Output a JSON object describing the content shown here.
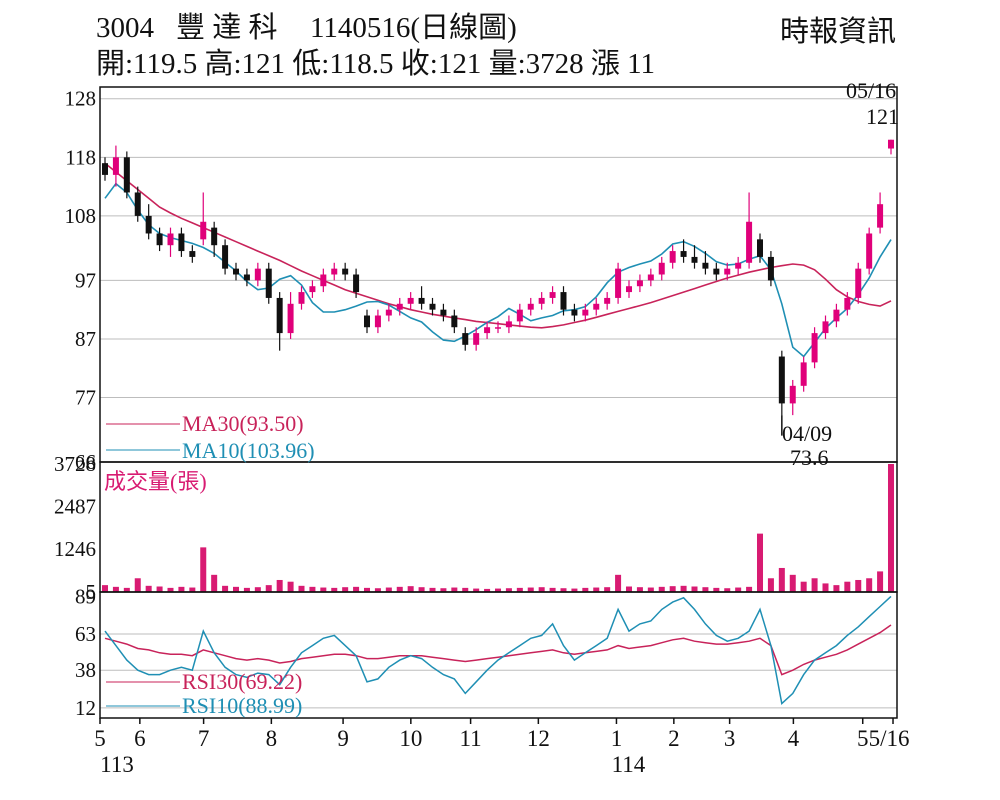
{
  "header": {
    "code": "3004",
    "name": "豐 達 科",
    "date_label": "1140516(日線圖)",
    "source": "時報資訊",
    "ohlc_line": "開:119.5 高:121 低:118.5 收:121 量:3728 漲 11"
  },
  "colors": {
    "up": "#e0007a",
    "down": "#111111",
    "ma30": "#c8235a",
    "ma10": "#1f8fb4",
    "rsi30": "#c8235a",
    "rsi10": "#1f8fb4",
    "volume": "#d81b72",
    "grid": "#bdbdbd",
    "frame": "#111111"
  },
  "chart_data": [
    {
      "type": "candlestick",
      "panel": "price",
      "y_ticks": [
        "128",
        "118",
        "108",
        "97",
        "87",
        "77",
        "66"
      ],
      "y_tick_values": [
        128,
        118,
        108,
        97,
        87,
        77,
        66
      ],
      "ylim": [
        66,
        130
      ],
      "grid": true,
      "series": [
        {
          "name": "MA30",
          "label": "MA30(93.50)",
          "last": 93.5,
          "values": [
            117,
            115.5,
            114,
            112.5,
            111,
            109.5,
            108.5,
            107.6,
            106.8,
            106,
            105.2,
            104.4,
            103.6,
            102.8,
            102,
            101.2,
            100.4,
            99.5,
            98.6,
            97.8,
            97,
            96.2,
            95.4,
            94.8,
            94.2,
            93.6,
            93,
            92.5,
            92,
            91.6,
            91.2,
            90.9,
            90.6,
            90.3,
            90,
            89.8,
            89.6,
            89.4,
            89.2,
            89,
            88.9,
            89.1,
            89.4,
            89.8,
            90.2,
            90.7,
            91.2,
            91.7,
            92.2,
            92.7,
            93.2,
            93.8,
            94.4,
            95,
            95.6,
            96.2,
            96.8,
            97.4,
            97.9,
            98.4,
            98.8,
            99.2,
            99.5,
            99.8,
            99.6,
            98.8,
            97.2,
            95.4,
            94.2,
            93.4,
            92.9,
            92.6,
            93.5
          ]
        },
        {
          "name": "MA10",
          "label": "MA10(103.96)",
          "last": 103.96,
          "values": [
            111,
            113.5,
            112,
            109,
            106.5,
            105,
            104.3,
            103.8,
            103.3,
            102.6,
            101.6,
            100.1,
            98.6,
            96.8,
            95.4,
            95.7,
            97.2,
            97.8,
            96.2,
            93.2,
            91.6,
            91.6,
            92,
            92.6,
            93.3,
            93.4,
            92.8,
            91.7,
            90.6,
            89.9,
            88.2,
            86.8,
            86.6,
            87.5,
            88.6,
            89.8,
            90.8,
            92.2,
            91.2,
            90.1,
            90.6,
            91,
            91.8,
            92,
            92.5,
            94.2,
            96.6,
            98.4,
            99.2,
            99.8,
            100.3,
            101.5,
            103.2,
            103.6,
            102.8,
            101.6,
            100.2,
            99.6,
            99.8,
            100.6,
            101.2,
            98.8,
            93,
            85.6,
            84,
            86.4,
            88.8,
            90.6,
            92.2,
            94.6,
            97.4,
            101,
            103.96
          ]
        }
      ],
      "annotations": [
        {
          "text": "05/16",
          "value": 121
        },
        {
          "text": "121",
          "value": 121
        },
        {
          "text": "04/09",
          "value": 73.6
        },
        {
          "text": "73.6",
          "value": 73.6
        }
      ],
      "candles": [
        {
          "o": 117,
          "h": 118,
          "l": 114,
          "c": 115
        },
        {
          "o": 115,
          "h": 120,
          "l": 113,
          "c": 118
        },
        {
          "o": 118,
          "h": 119,
          "l": 111,
          "c": 112
        },
        {
          "o": 112,
          "h": 113,
          "l": 107,
          "c": 108
        },
        {
          "o": 108,
          "h": 110,
          "l": 104,
          "c": 105
        },
        {
          "o": 105,
          "h": 106,
          "l": 102,
          "c": 103
        },
        {
          "o": 103,
          "h": 106,
          "l": 101,
          "c": 105
        },
        {
          "o": 105,
          "h": 106,
          "l": 101,
          "c": 102
        },
        {
          "o": 102,
          "h": 103,
          "l": 100,
          "c": 101
        },
        {
          "o": 104,
          "h": 112,
          "l": 103,
          "c": 107
        },
        {
          "o": 106,
          "h": 107,
          "l": 101,
          "c": 103
        },
        {
          "o": 103,
          "h": 104,
          "l": 98,
          "c": 99
        },
        {
          "o": 99,
          "h": 100,
          "l": 97,
          "c": 98
        },
        {
          "o": 98,
          "h": 99,
          "l": 96,
          "c": 97
        },
        {
          "o": 97,
          "h": 100,
          "l": 96,
          "c": 99
        },
        {
          "o": 99,
          "h": 100,
          "l": 93,
          "c": 94
        },
        {
          "o": 94,
          "h": 95,
          "l": 85,
          "c": 88
        },
        {
          "o": 88,
          "h": 95,
          "l": 87,
          "c": 93
        },
        {
          "o": 93,
          "h": 96,
          "l": 92,
          "c": 95
        },
        {
          "o": 95,
          "h": 97,
          "l": 94,
          "c": 96
        },
        {
          "o": 96,
          "h": 99,
          "l": 95,
          "c": 98
        },
        {
          "o": 98,
          "h": 100,
          "l": 97,
          "c": 99
        },
        {
          "o": 99,
          "h": 100,
          "l": 97,
          "c": 98
        },
        {
          "o": 98,
          "h": 99,
          "l": 94,
          "c": 95
        },
        {
          "o": 91,
          "h": 92,
          "l": 88,
          "c": 89
        },
        {
          "o": 89,
          "h": 92,
          "l": 88,
          "c": 91
        },
        {
          "o": 91,
          "h": 93,
          "l": 90,
          "c": 92
        },
        {
          "o": 92,
          "h": 94,
          "l": 91,
          "c": 93
        },
        {
          "o": 93,
          "h": 95,
          "l": 92,
          "c": 94
        },
        {
          "o": 94,
          "h": 96,
          "l": 92,
          "c": 93
        },
        {
          "o": 93,
          "h": 94,
          "l": 91,
          "c": 92
        },
        {
          "o": 92,
          "h": 93,
          "l": 90,
          "c": 91
        },
        {
          "o": 91,
          "h": 92,
          "l": 88,
          "c": 89
        },
        {
          "o": 88,
          "h": 89,
          "l": 85,
          "c": 86
        },
        {
          "o": 86,
          "h": 89,
          "l": 85,
          "c": 88
        },
        {
          "o": 88,
          "h": 90,
          "l": 87,
          "c": 89
        },
        {
          "o": 89,
          "h": 90,
          "l": 88,
          "c": 89
        },
        {
          "o": 89,
          "h": 91,
          "l": 88,
          "c": 90
        },
        {
          "o": 90,
          "h": 93,
          "l": 89,
          "c": 92
        },
        {
          "o": 92,
          "h": 94,
          "l": 91,
          "c": 93
        },
        {
          "o": 93,
          "h": 95,
          "l": 92,
          "c": 94
        },
        {
          "o": 94,
          "h": 96,
          "l": 93,
          "c": 95
        },
        {
          "o": 95,
          "h": 96,
          "l": 91,
          "c": 92
        },
        {
          "o": 92,
          "h": 93,
          "l": 90,
          "c": 91
        },
        {
          "o": 91,
          "h": 93,
          "l": 90,
          "c": 92
        },
        {
          "o": 92,
          "h": 94,
          "l": 91,
          "c": 93
        },
        {
          "o": 93,
          "h": 95,
          "l": 92,
          "c": 94
        },
        {
          "o": 94,
          "h": 100,
          "l": 93,
          "c": 99
        },
        {
          "o": 95,
          "h": 97,
          "l": 94,
          "c": 96
        },
        {
          "o": 96,
          "h": 98,
          "l": 95,
          "c": 97
        },
        {
          "o": 97,
          "h": 99,
          "l": 96,
          "c": 98
        },
        {
          "o": 98,
          "h": 101,
          "l": 97,
          "c": 100
        },
        {
          "o": 100,
          "h": 103,
          "l": 99,
          "c": 102
        },
        {
          "o": 102,
          "h": 104,
          "l": 100,
          "c": 101
        },
        {
          "o": 101,
          "h": 103,
          "l": 99,
          "c": 100
        },
        {
          "o": 100,
          "h": 102,
          "l": 98,
          "c": 99
        },
        {
          "o": 99,
          "h": 100,
          "l": 97,
          "c": 98
        },
        {
          "o": 98,
          "h": 100,
          "l": 97,
          "c": 99
        },
        {
          "o": 99,
          "h": 101,
          "l": 98,
          "c": 100
        },
        {
          "o": 100,
          "h": 112,
          "l": 99,
          "c": 107
        },
        {
          "o": 104,
          "h": 105,
          "l": 100,
          "c": 101
        },
        {
          "o": 101,
          "h": 102,
          "l": 96,
          "c": 97
        },
        {
          "o": 84,
          "h": 85,
          "l": 74,
          "c": 76
        },
        {
          "o": 76,
          "h": 80,
          "l": 74,
          "c": 79
        },
        {
          "o": 79,
          "h": 84,
          "l": 78,
          "c": 83
        },
        {
          "o": 83,
          "h": 89,
          "l": 82,
          "c": 88
        },
        {
          "o": 88,
          "h": 91,
          "l": 87,
          "c": 90
        },
        {
          "o": 90,
          "h": 93,
          "l": 89,
          "c": 92
        },
        {
          "o": 92,
          "h": 95,
          "l": 91,
          "c": 94
        },
        {
          "o": 94,
          "h": 100,
          "l": 93,
          "c": 99
        },
        {
          "o": 99,
          "h": 106,
          "l": 98,
          "c": 105
        },
        {
          "o": 106,
          "h": 112,
          "l": 105,
          "c": 110
        },
        {
          "o": 119.5,
          "h": 121,
          "l": 118.5,
          "c": 121
        }
      ]
    },
    {
      "type": "bar",
      "panel": "volume",
      "title": "成交量(張)",
      "y_ticks": [
        "3728",
        "2487",
        "1246",
        "5"
      ],
      "y_tick_values": [
        3728,
        2487,
        1246,
        5
      ],
      "ylim": [
        0,
        3728
      ],
      "values": [
        200,
        150,
        120,
        400,
        180,
        160,
        120,
        150,
        130,
        1300,
        500,
        180,
        150,
        120,
        140,
        200,
        350,
        300,
        180,
        150,
        130,
        120,
        140,
        150,
        120,
        110,
        130,
        150,
        170,
        140,
        120,
        110,
        130,
        120,
        100,
        90,
        100,
        110,
        120,
        130,
        140,
        120,
        110,
        100,
        120,
        130,
        140,
        500,
        160,
        140,
        130,
        150,
        170,
        180,
        160,
        140,
        120,
        110,
        130,
        150,
        1700,
        400,
        700,
        500,
        300,
        400,
        250,
        200,
        300,
        350,
        400,
        600,
        3728
      ]
    },
    {
      "type": "line",
      "panel": "rsi",
      "y_ticks": [
        "89",
        "63",
        "38",
        "12"
      ],
      "y_tick_values": [
        89,
        63,
        38,
        12
      ],
      "ylim": [
        5,
        92
      ],
      "series": [
        {
          "name": "RSI30",
          "label": "RSI30(69.22)",
          "last": 69.22,
          "values": [
            60,
            58,
            56,
            53,
            52,
            50,
            49,
            49,
            48,
            52,
            50,
            48,
            46,
            45,
            46,
            45,
            43,
            44,
            46,
            47,
            48,
            49,
            49,
            48,
            46,
            46,
            47,
            48,
            48,
            48,
            47,
            46,
            45,
            44,
            45,
            46,
            47,
            48,
            49,
            50,
            51,
            52,
            50,
            49,
            50,
            51,
            52,
            55,
            53,
            54,
            55,
            57,
            59,
            60,
            58,
            57,
            56,
            56,
            57,
            58,
            60,
            55,
            35,
            38,
            42,
            45,
            47,
            49,
            52,
            56,
            60,
            64,
            69.22
          ]
        },
        {
          "name": "RSI10",
          "label": "RSI10(88.99)",
          "last": 88.99,
          "values": [
            65,
            55,
            45,
            38,
            35,
            35,
            38,
            40,
            38,
            65,
            50,
            40,
            35,
            33,
            36,
            35,
            28,
            40,
            50,
            55,
            60,
            62,
            55,
            48,
            30,
            32,
            40,
            45,
            48,
            46,
            40,
            35,
            32,
            22,
            30,
            38,
            45,
            50,
            55,
            60,
            62,
            70,
            55,
            45,
            50,
            55,
            60,
            80,
            65,
            70,
            72,
            80,
            85,
            88,
            80,
            70,
            62,
            58,
            60,
            65,
            80,
            55,
            15,
            22,
            35,
            45,
            50,
            55,
            62,
            68,
            75,
            82,
            88.99
          ]
        }
      ]
    }
  ],
  "x_axis": {
    "month_labels": [
      "5",
      "6",
      "7",
      "8",
      "9",
      "10",
      "11",
      "12",
      "1",
      "2",
      "3",
      "4",
      "5",
      "5/16"
    ],
    "year_labels": [
      "113",
      "114"
    ]
  }
}
